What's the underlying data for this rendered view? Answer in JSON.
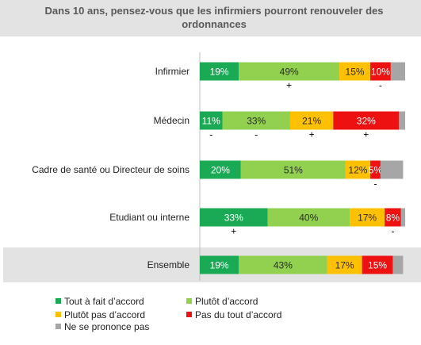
{
  "chart_data": {
    "type": "bar",
    "orientation": "horizontal",
    "stacked": true,
    "title": "Dans 10 ans, pensez-vous que les infirmiers pourront renouveler des ordonnances",
    "categories": [
      "Infirmier",
      "Médecin",
      "Cadre de santé ou Directeur de soins",
      "Etudiant ou interne",
      "Ensemble"
    ],
    "series": [
      {
        "name": "Tout à fait d’accord",
        "color": "#1aaa55",
        "values": [
          19,
          11,
          20,
          33,
          19
        ],
        "labels": [
          "19%",
          "11%",
          "20%",
          "33%",
          "19%"
        ]
      },
      {
        "name": "Plutôt d’accord",
        "color": "#92d050",
        "values": [
          49,
          33,
          51,
          40,
          43
        ],
        "labels": [
          "49%",
          "33%",
          "51%",
          "40%",
          "43%"
        ]
      },
      {
        "name": "Plutôt pas d’accord",
        "color": "#ffc000",
        "values": [
          15,
          21,
          12,
          17,
          17
        ],
        "labels": [
          "15%",
          "21%",
          "12%",
          "17%",
          "17%"
        ]
      },
      {
        "name": "Pas du tout d’accord",
        "color": "#ee1111",
        "values": [
          10,
          32,
          5,
          8,
          15
        ],
        "labels": [
          "10%",
          "32%",
          "5%",
          "8%",
          "15%"
        ]
      },
      {
        "name": "Ne se prononce pas",
        "color": "#a6a6a6",
        "values": [
          7,
          3,
          11,
          2,
          5
        ],
        "labels": [
          "",
          "",
          "",
          "",
          ""
        ]
      }
    ],
    "significance_marks": [
      [
        null,
        "+",
        null,
        "-",
        null
      ],
      [
        "-",
        "-",
        "+",
        "+",
        null
      ],
      [
        null,
        null,
        null,
        "-",
        null
      ],
      [
        "+",
        null,
        null,
        "-",
        null
      ],
      [
        null,
        null,
        null,
        null,
        null
      ]
    ],
    "highlighted_category": "Ensemble",
    "legend_position": "bottom",
    "xlim": [
      0,
      100
    ],
    "grid": false
  }
}
